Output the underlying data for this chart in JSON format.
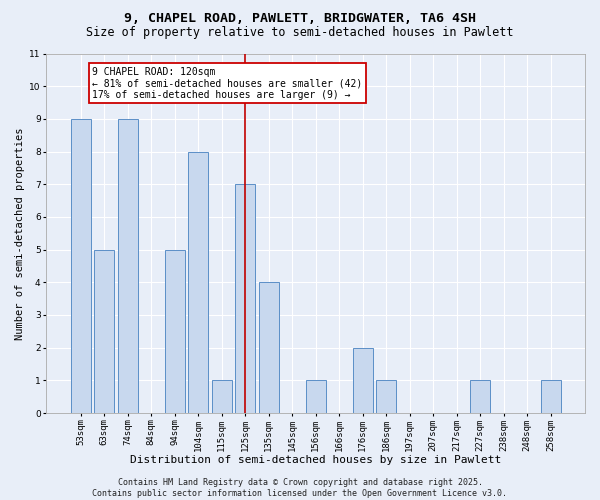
{
  "title": "9, CHAPEL ROAD, PAWLETT, BRIDGWATER, TA6 4SH",
  "subtitle": "Size of property relative to semi-detached houses in Pawlett",
  "xlabel": "Distribution of semi-detached houses by size in Pawlett",
  "ylabel": "Number of semi-detached properties",
  "categories": [
    "53sqm",
    "63sqm",
    "74sqm",
    "84sqm",
    "94sqm",
    "104sqm",
    "115sqm",
    "125sqm",
    "135sqm",
    "145sqm",
    "156sqm",
    "166sqm",
    "176sqm",
    "186sqm",
    "197sqm",
    "207sqm",
    "217sqm",
    "227sqm",
    "238sqm",
    "248sqm",
    "258sqm"
  ],
  "values": [
    9,
    5,
    9,
    0,
    5,
    8,
    1,
    7,
    4,
    0,
    1,
    0,
    2,
    1,
    0,
    0,
    0,
    1,
    0,
    0,
    1
  ],
  "highlight_index": 7,
  "bar_color": "#c8d8ee",
  "bar_edge_color": "#5b8fc7",
  "vline_color": "#c00000",
  "ylim": [
    0,
    11
  ],
  "yticks": [
    0,
    1,
    2,
    3,
    4,
    5,
    6,
    7,
    8,
    9,
    10,
    11
  ],
  "annotation_text": "9 CHAPEL ROAD: 120sqm\n← 81% of semi-detached houses are smaller (42)\n17% of semi-detached houses are larger (9) →",
  "annotation_box_facecolor": "#ffffff",
  "annotation_box_edgecolor": "#cc0000",
  "footer": "Contains HM Land Registry data © Crown copyright and database right 2025.\nContains public sector information licensed under the Open Government Licence v3.0.",
  "background_color": "#e8eef8",
  "grid_color": "#ffffff",
  "title_fontsize": 9.5,
  "subtitle_fontsize": 8.5,
  "xlabel_fontsize": 8,
  "ylabel_fontsize": 7.5,
  "tick_fontsize": 6.5,
  "annot_fontsize": 7,
  "footer_fontsize": 6
}
